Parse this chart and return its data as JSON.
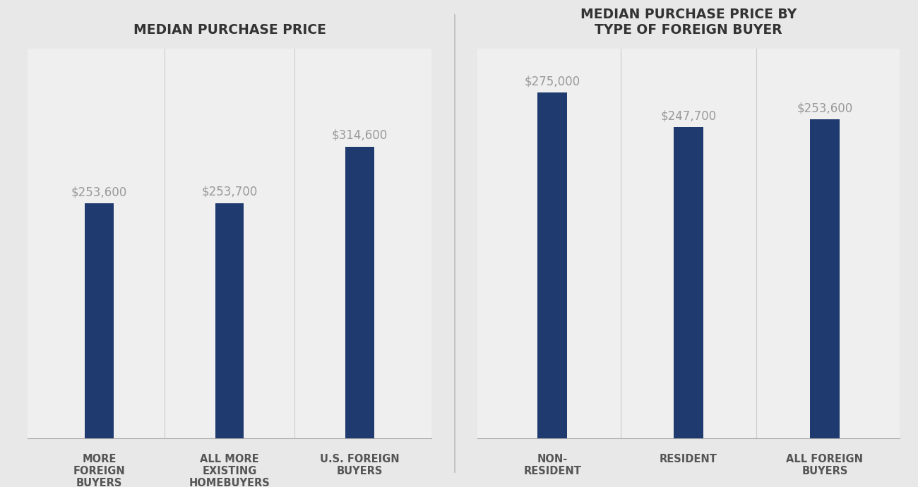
{
  "chart1": {
    "title": "MEDIAN PURCHASE PRICE",
    "categories": [
      "MORE\nFOREIGN\nBUYERS",
      "ALL MORE\nEXISTING\nHOMEBUYERS",
      "U.S. FOREIGN\nBUYERS"
    ],
    "values": [
      253600,
      253700,
      314600
    ],
    "labels": [
      "$253,600",
      "$253,700",
      "$314,600"
    ],
    "bar_color": "#1F3A6E",
    "ylim": [
      0,
      420000
    ],
    "bg_color": "#EFEFEF"
  },
  "chart2": {
    "title": "MEDIAN PURCHASE PRICE BY\nTYPE OF FOREIGN BUYER",
    "categories": [
      "NON-\nRESIDENT",
      "RESIDENT",
      "ALL FOREIGN\nBUYERS"
    ],
    "values": [
      275000,
      247700,
      253600
    ],
    "labels": [
      "$275,000",
      "$247,700",
      "$253,600"
    ],
    "bar_color": "#1F3A6E",
    "ylim": [
      0,
      310000
    ],
    "bg_color": "#EFEFEF"
  },
  "label_color": "#999999",
  "title_color": "#333333",
  "tick_label_color": "#555555",
  "title_fontsize": 13.5,
  "label_fontsize": 12,
  "tick_fontsize": 10.5,
  "bar_width": 0.22,
  "overall_bg": "#E8E8E8"
}
